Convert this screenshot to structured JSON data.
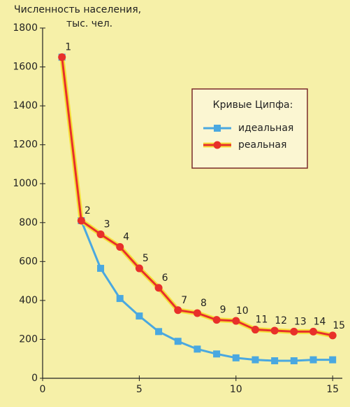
{
  "chart_data": {
    "type": "line",
    "y_label": [
      "Численность населения,",
      "тыс. чел."
    ],
    "legend_title": "Кривые Ципфа:",
    "x": [
      1,
      2,
      3,
      4,
      5,
      6,
      7,
      8,
      9,
      10,
      11,
      12,
      13,
      14,
      15
    ],
    "series": [
      {
        "name": "идеальная",
        "color": "#4aa8e0",
        "marker": "square",
        "values": [
          1650,
          810,
          565,
          410,
          320,
          240,
          190,
          150,
          125,
          105,
          95,
          90,
          90,
          95,
          95
        ]
      },
      {
        "name": "реальная",
        "color": "#e8302a",
        "marker": "circle",
        "outline": "#f5e03a",
        "values": [
          1650,
          810,
          740,
          675,
          565,
          465,
          350,
          335,
          300,
          295,
          250,
          245,
          240,
          240,
          220
        ]
      }
    ],
    "point_labels_series": 1,
    "xlim": [
      0,
      15.5
    ],
    "xticks": [
      0,
      5,
      10,
      15
    ],
    "ylim": [
      0,
      1800
    ],
    "yticks": [
      0,
      200,
      400,
      600,
      800,
      1000,
      1200,
      1400,
      1600,
      1800
    ],
    "legend": "upper right"
  }
}
